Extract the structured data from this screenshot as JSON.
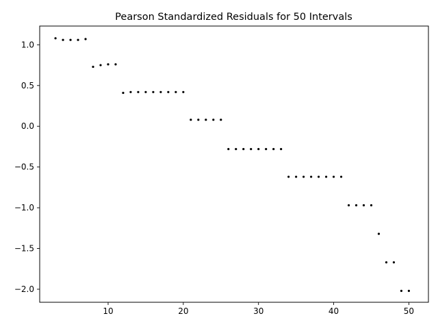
{
  "chart_data": {
    "type": "scatter",
    "title": "Pearson Standardized Residuals for 50 Intervals",
    "xlabel": "",
    "ylabel": "",
    "xlim": [
      0.9,
      52.6
    ],
    "ylim": [
      -2.16,
      1.23
    ],
    "xticks": [
      10,
      20,
      30,
      40,
      50
    ],
    "yticks": [
      1.0,
      0.5,
      0.0,
      -0.5,
      -1.0,
      -1.5,
      -2.0
    ],
    "ytick_labels": [
      "1.0",
      "0.5",
      "0.0",
      "−0.5",
      "−1.0",
      "−1.5",
      "−2.0"
    ],
    "grid": false,
    "series": [
      {
        "marker_color": "#000000",
        "x": [
          3,
          4,
          5,
          6,
          7,
          8,
          9,
          10,
          11,
          12,
          13,
          14,
          15,
          16,
          17,
          18,
          19,
          20,
          21,
          22,
          23,
          24,
          25,
          26,
          27,
          28,
          29,
          30,
          31,
          32,
          33,
          34,
          35,
          36,
          37,
          38,
          39,
          40,
          41,
          42,
          43,
          44,
          45,
          46,
          47,
          48,
          49,
          50
        ],
        "y": [
          1.08,
          1.06,
          1.06,
          1.06,
          1.07,
          0.73,
          0.75,
          0.76,
          0.76,
          0.41,
          0.42,
          0.42,
          0.42,
          0.42,
          0.42,
          0.42,
          0.42,
          0.42,
          0.08,
          0.08,
          0.08,
          0.08,
          0.08,
          -0.28,
          -0.28,
          -0.28,
          -0.28,
          -0.28,
          -0.28,
          -0.28,
          -0.28,
          -0.62,
          -0.62,
          -0.62,
          -0.62,
          -0.62,
          -0.62,
          -0.62,
          -0.62,
          -0.97,
          -0.97,
          -0.97,
          -0.97,
          -1.32,
          -1.67,
          -1.67,
          -2.02,
          -2.02
        ]
      }
    ]
  }
}
